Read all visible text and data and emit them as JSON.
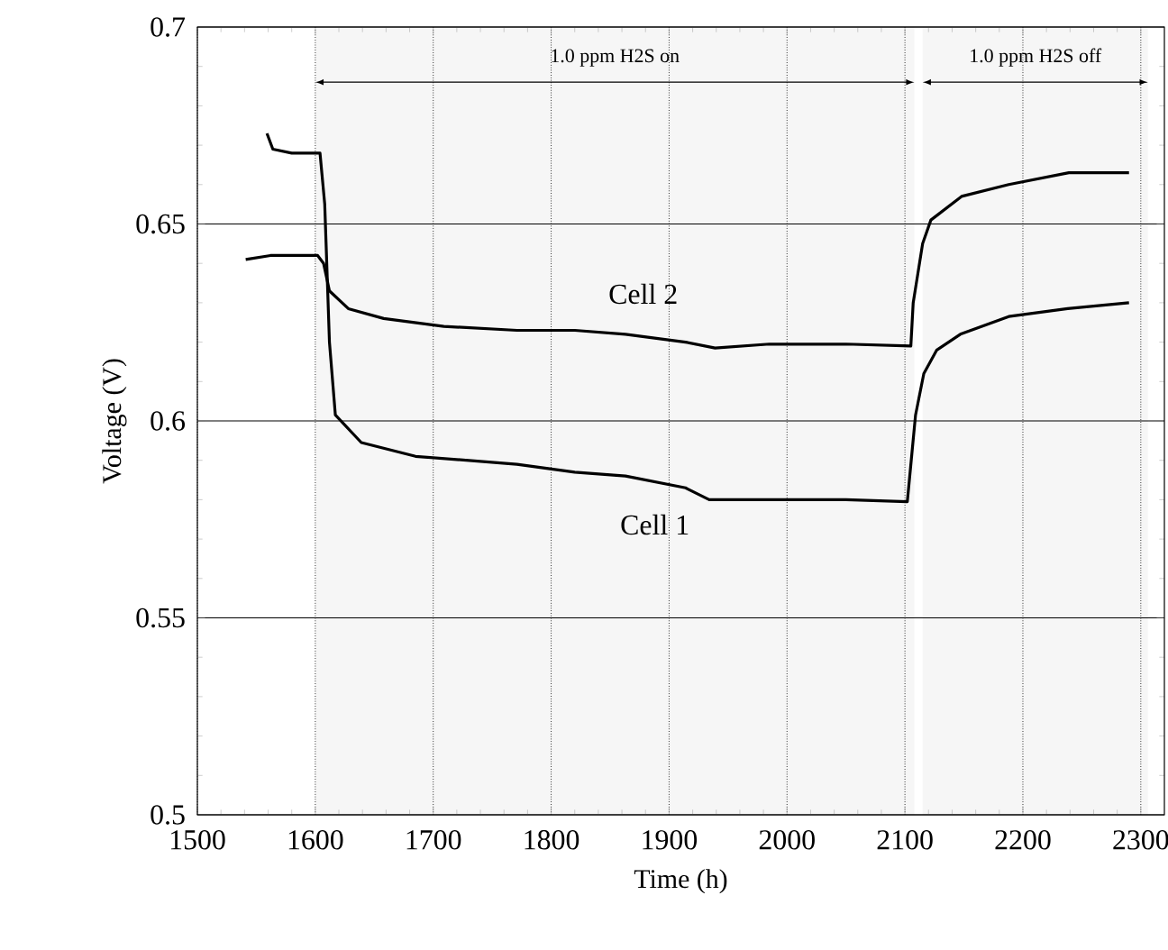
{
  "chart_data": {
    "type": "line",
    "xlabel": "Time (h)",
    "ylabel": "Voltage (V)",
    "xlim": [
      1500,
      2320
    ],
    "ylim": [
      0.5,
      0.7
    ],
    "xticks": [
      1500,
      1600,
      1700,
      1800,
      1900,
      2000,
      2100,
      2200,
      2300
    ],
    "yticks": [
      0.5,
      0.55,
      0.6,
      0.65,
      0.7
    ],
    "grid": true,
    "marker": "none",
    "line_style": "solid",
    "bands": [
      {
        "axis": "x",
        "from": 1600,
        "to": 2108,
        "label": "1.0 ppm H2S on",
        "color": "#f6f6f6"
      },
      {
        "axis": "x",
        "from": 2115,
        "to": 2306,
        "label": "1.0 ppm H2S off",
        "color": "#f6f6f6"
      }
    ],
    "series": [
      {
        "name": "Cell 2",
        "color": "#000000",
        "x": [
          1541,
          1562,
          1602,
          1607,
          1612,
          1628,
          1658,
          1709,
          1771,
          1820,
          1863,
          1914,
          1939,
          1985,
          2050,
          2105,
          2107,
          2115,
          2122,
          2148,
          2188,
          2239,
          2290
        ],
        "values": [
          0.641,
          0.642,
          0.642,
          0.64,
          0.633,
          0.6285,
          0.626,
          0.624,
          0.623,
          0.623,
          0.622,
          0.62,
          0.6185,
          0.6195,
          0.6195,
          0.619,
          0.63,
          0.645,
          0.651,
          0.657,
          0.66,
          0.663,
          0.663
        ]
      },
      {
        "name": "Cell 1",
        "color": "#000000",
        "x": [
          1559,
          1564,
          1580,
          1604,
          1608,
          1612,
          1617,
          1639,
          1685,
          1771,
          1820,
          1863,
          1914,
          1934,
          1985,
          2050,
          2102,
          2109,
          2116,
          2127,
          2147,
          2188,
          2238,
          2290
        ],
        "values": [
          0.673,
          0.669,
          0.668,
          0.668,
          0.655,
          0.62,
          0.6015,
          0.5945,
          0.591,
          0.589,
          0.587,
          0.586,
          0.583,
          0.58,
          0.58,
          0.58,
          0.5795,
          0.6015,
          0.612,
          0.618,
          0.622,
          0.6265,
          0.6285,
          0.63
        ]
      }
    ]
  }
}
